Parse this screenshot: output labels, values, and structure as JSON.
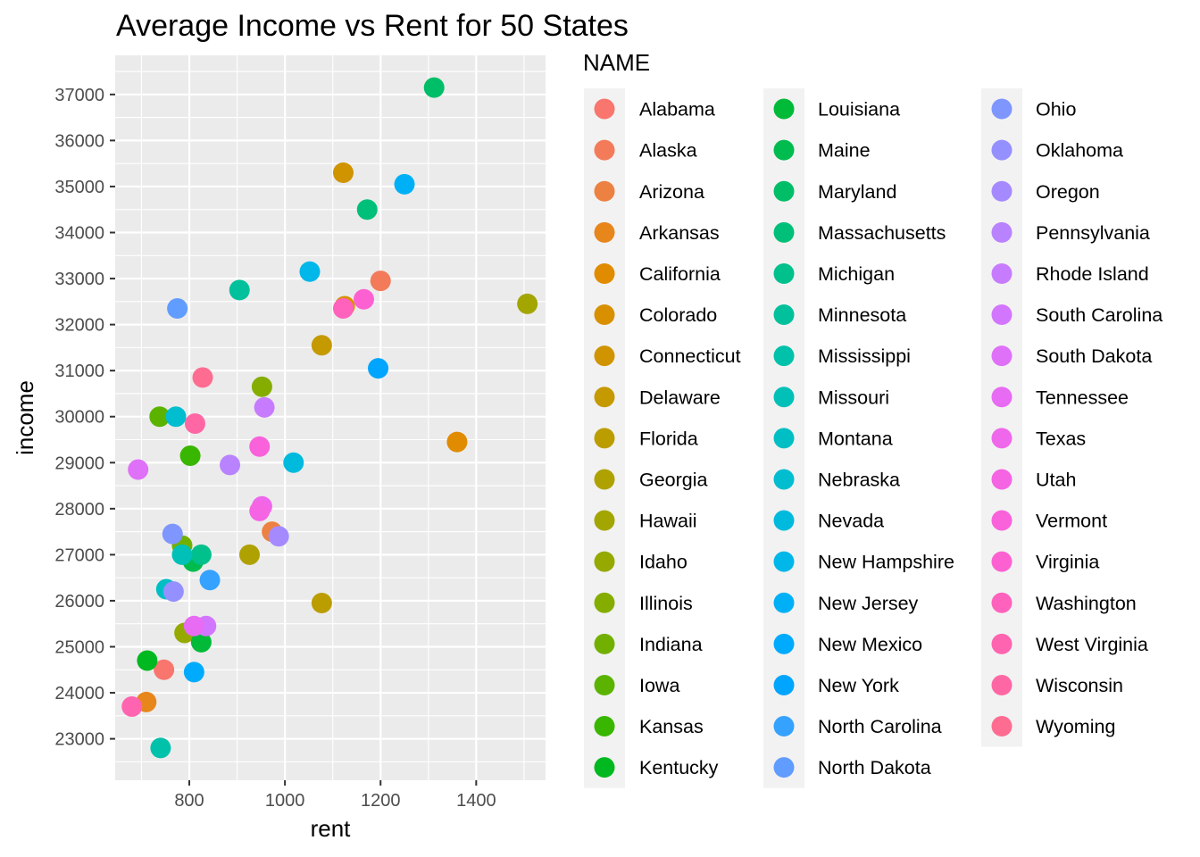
{
  "chart_data": {
    "type": "scatter",
    "title": "Average Income vs Rent for 50 States",
    "xlabel": "rent",
    "ylabel": "income",
    "xlim": [
      645,
      1545
    ],
    "ylim": [
      22100,
      37850
    ],
    "x_ticks": [
      800,
      1000,
      1200,
      1400
    ],
    "y_ticks": [
      23000,
      24000,
      25000,
      26000,
      27000,
      28000,
      29000,
      30000,
      31000,
      32000,
      33000,
      34000,
      35000,
      36000,
      37000
    ],
    "grid": true,
    "legend_title": "NAME",
    "legend_position": "right",
    "series": [
      {
        "name": "Alabama",
        "color": "#F8766D",
        "x": 747,
        "y": 24500
      },
      {
        "name": "Alaska",
        "color": "#F37B59",
        "x": 1200,
        "y": 32950
      },
      {
        "name": "Arizona",
        "color": "#ED8141",
        "x": 973,
        "y": 27500
      },
      {
        "name": "Arkansas",
        "color": "#E7861B",
        "x": 710,
        "y": 23800
      },
      {
        "name": "California",
        "color": "#E08B00",
        "x": 1360,
        "y": 29450
      },
      {
        "name": "Colorado",
        "color": "#D89000",
        "x": 1125,
        "y": 32400
      },
      {
        "name": "Connecticut",
        "color": "#CF9400",
        "x": 1122,
        "y": 35300
      },
      {
        "name": "Delaware",
        "color": "#C59900",
        "x": 1077,
        "y": 31550
      },
      {
        "name": "Florida",
        "color": "#BB9D00",
        "x": 1077,
        "y": 25950
      },
      {
        "name": "Georgia",
        "color": "#AFA100",
        "x": 926,
        "y": 27000
      },
      {
        "name": "Hawaii",
        "color": "#A3A500",
        "x": 1507,
        "y": 32450
      },
      {
        "name": "Idaho",
        "color": "#95A900",
        "x": 790,
        "y": 25300
      },
      {
        "name": "Illinois",
        "color": "#85AD00",
        "x": 952,
        "y": 30650
      },
      {
        "name": "Indiana",
        "color": "#72B000",
        "x": 785,
        "y": 27200
      },
      {
        "name": "Iowa",
        "color": "#5BB300",
        "x": 738,
        "y": 30000
      },
      {
        "name": "Kansas",
        "color": "#39B600",
        "x": 802,
        "y": 29150
      },
      {
        "name": "Kentucky",
        "color": "#00B81F",
        "x": 712,
        "y": 24700
      },
      {
        "name": "Louisiana",
        "color": "#00BA38",
        "x": 825,
        "y": 25100
      },
      {
        "name": "Maine",
        "color": "#00BC4E",
        "x": 808,
        "y": 26850
      },
      {
        "name": "Maryland",
        "color": "#00BE67",
        "x": 1312,
        "y": 37150
      },
      {
        "name": "Massachusetts",
        "color": "#00C079",
        "x": 1172,
        "y": 34500
      },
      {
        "name": "Michigan",
        "color": "#00C08B",
        "x": 825,
        "y": 27000
      },
      {
        "name": "Minnesota",
        "color": "#00C19C",
        "x": 905,
        "y": 32750
      },
      {
        "name": "Mississippi",
        "color": "#00C1AA",
        "x": 740,
        "y": 22800
      },
      {
        "name": "Missouri",
        "color": "#00C0B8",
        "x": 785,
        "y": 27000
      },
      {
        "name": "Montana",
        "color": "#00BFC4",
        "x": 752,
        "y": 26250
      },
      {
        "name": "Nebraska",
        "color": "#00BDD0",
        "x": 772,
        "y": 30000
      },
      {
        "name": "Nevada",
        "color": "#00BADE",
        "x": 1018,
        "y": 29000
      },
      {
        "name": "New Hampshire",
        "color": "#00B7E9",
        "x": 1052,
        "y": 33150
      },
      {
        "name": "New Jersey",
        "color": "#00B0F6",
        "x": 1250,
        "y": 35050
      },
      {
        "name": "New Mexico",
        "color": "#00ABFD",
        "x": 810,
        "y": 24450
      },
      {
        "name": "New York",
        "color": "#00A5FF",
        "x": 1195,
        "y": 31050
      },
      {
        "name": "North Carolina",
        "color": "#35A2FF",
        "x": 843,
        "y": 26450
      },
      {
        "name": "North Dakota",
        "color": "#619CFF",
        "x": 775,
        "y": 32350
      },
      {
        "name": "Ohio",
        "color": "#7F96FF",
        "x": 765,
        "y": 27450
      },
      {
        "name": "Oklahoma",
        "color": "#9590FF",
        "x": 767,
        "y": 26200
      },
      {
        "name": "Oregon",
        "color": "#A58AFF",
        "x": 987,
        "y": 27400
      },
      {
        "name": "Pennsylvania",
        "color": "#B983FF",
        "x": 885,
        "y": 28950
      },
      {
        "name": "Rhode Island",
        "color": "#C77CFF",
        "x": 957,
        "y": 30200
      },
      {
        "name": "South Carolina",
        "color": "#D376FF",
        "x": 835,
        "y": 25450
      },
      {
        "name": "South Dakota",
        "color": "#DF70F8",
        "x": 693,
        "y": 28850
      },
      {
        "name": "Tennessee",
        "color": "#E76BF3",
        "x": 810,
        "y": 25450
      },
      {
        "name": "Texas",
        "color": "#EF67EB",
        "x": 952,
        "y": 28050
      },
      {
        "name": "Utah",
        "color": "#F564E3",
        "x": 947,
        "y": 27950
      },
      {
        "name": "Vermont",
        "color": "#F962DB",
        "x": 947,
        "y": 29350
      },
      {
        "name": "Virginia",
        "color": "#FD61D1",
        "x": 1165,
        "y": 32550
      },
      {
        "name": "Washington",
        "color": "#FF62BC",
        "x": 1122,
        "y": 32350
      },
      {
        "name": "West Virginia",
        "color": "#FF64B0",
        "x": 680,
        "y": 23700
      },
      {
        "name": "Wisconsin",
        "color": "#FF67A4",
        "x": 812,
        "y": 29850
      },
      {
        "name": "Wyoming",
        "color": "#FF6C91",
        "x": 828,
        "y": 30850
      }
    ]
  }
}
